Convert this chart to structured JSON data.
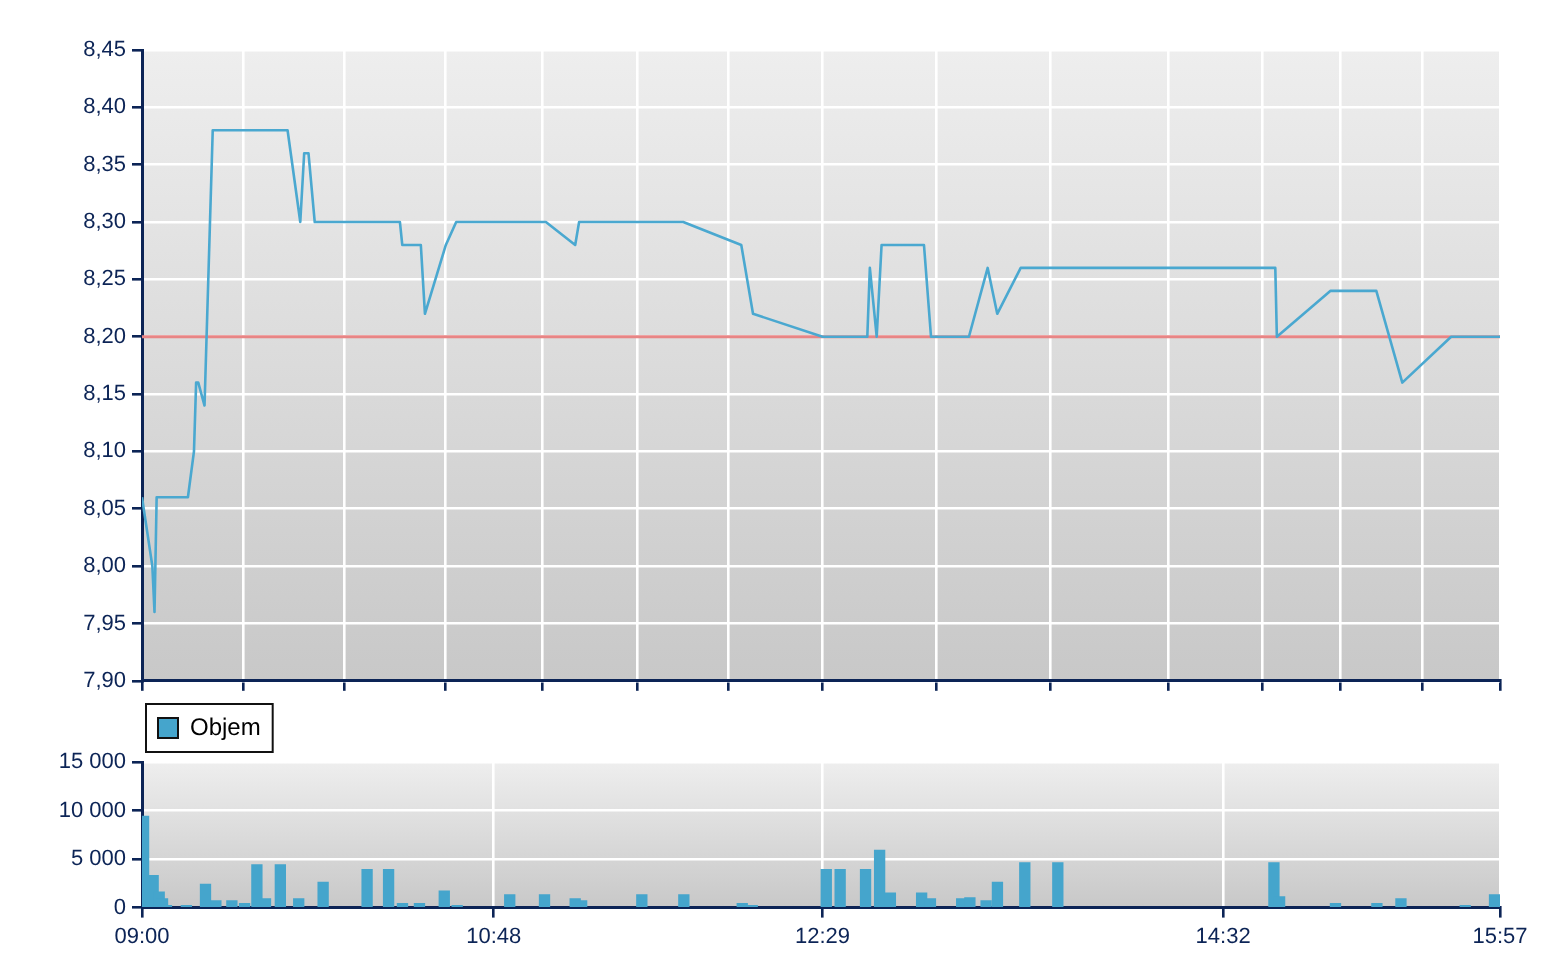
{
  "chart_data": [
    {
      "type": "line",
      "color": "#4aa8d0",
      "marker": "none",
      "line_style": "solid",
      "grid": true,
      "tick_labels": "y",
      "x": [
        9.0,
        9.053,
        9.064,
        9.075,
        9.235,
        9.266,
        9.277,
        9.288,
        9.32,
        9.362,
        9.745,
        9.81,
        9.83,
        9.852,
        9.884,
        10.32,
        10.332,
        10.427,
        10.448,
        10.555,
        10.608,
        11.067,
        11.217,
        11.237,
        11.77,
        12.067,
        12.127,
        12.483,
        12.712,
        12.725,
        12.76,
        12.785,
        13.002,
        13.038,
        13.232,
        13.328,
        13.377,
        13.497,
        14.8,
        14.808,
        15.083,
        15.317,
        15.45,
        15.7,
        15.95
      ],
      "values": [
        8.06,
        8.0,
        7.96,
        8.06,
        8.06,
        8.1,
        8.16,
        8.16,
        8.14,
        8.38,
        8.38,
        8.3,
        8.36,
        8.36,
        8.3,
        8.3,
        8.28,
        8.28,
        8.22,
        8.28,
        8.3,
        8.3,
        8.28,
        8.3,
        8.3,
        8.28,
        8.22,
        8.2,
        8.2,
        8.26,
        8.2,
        8.28,
        8.28,
        8.2,
        8.2,
        8.26,
        8.22,
        8.26,
        8.26,
        8.2,
        8.24,
        8.24,
        8.16,
        8.2,
        8.2
      ],
      "xlim": [
        9,
        15.95
      ],
      "xticks": [
        {
          "value": 9,
          "label": null
        },
        {
          "value": 9.517,
          "label": null
        },
        {
          "value": 10.033,
          "label": null
        },
        {
          "value": 10.55,
          "label": null
        },
        {
          "value": 11.05,
          "label": null
        },
        {
          "value": 11.533,
          "label": null
        },
        {
          "value": 12.0,
          "label": null
        },
        {
          "value": 12.483,
          "label": null
        },
        {
          "value": 13.067,
          "label": null
        },
        {
          "value": 13.65,
          "label": null
        },
        {
          "value": 14.25,
          "label": null
        },
        {
          "value": 14.733,
          "label": null
        },
        {
          "value": 15.133,
          "label": null
        },
        {
          "value": 15.55,
          "label": null
        },
        {
          "value": 15.95,
          "label": null
        }
      ],
      "ylim": [
        7.9,
        8.45
      ],
      "yticks": [
        {
          "value": 7.9,
          "label": "7,90"
        },
        {
          "value": 7.95,
          "label": "7,95"
        },
        {
          "value": 8.0,
          "label": "8,00"
        },
        {
          "value": 8.05,
          "label": "8,05"
        },
        {
          "value": 8.1,
          "label": "8,10"
        },
        {
          "value": 8.15,
          "label": "8,15"
        },
        {
          "value": 8.2,
          "label": "8,20"
        },
        {
          "value": 8.25,
          "label": "8,25"
        },
        {
          "value": 8.3,
          "label": "8,30"
        },
        {
          "value": 8.35,
          "label": "8,35"
        },
        {
          "value": 8.4,
          "label": "8,40"
        },
        {
          "value": 8.45,
          "label": "8,45"
        }
      ],
      "ref_lines": [
        {
          "axis": "y",
          "value": 8.2,
          "color": "#e88585"
        }
      ]
    },
    {
      "type": "bar",
      "grid": true,
      "legend": "top left",
      "x": [
        9.008,
        9.057,
        9.088,
        9.105,
        9.125,
        9.227,
        9.325,
        9.378,
        9.46,
        9.525,
        9.588,
        9.632,
        9.708,
        9.802,
        9.927,
        10.152,
        10.262,
        10.333,
        10.42,
        10.547,
        10.613,
        10.882,
        11.06,
        11.217,
        11.25,
        11.558,
        11.773,
        12.072,
        12.123,
        12.502,
        12.573,
        12.703,
        12.775,
        12.83,
        12.99,
        13.035,
        13.195,
        13.237,
        13.32,
        13.378,
        13.518,
        13.687,
        14.793,
        14.822,
        15.108,
        15.32,
        15.443,
        15.772,
        15.922
      ],
      "series": [
        {
          "name": "Objem",
          "color": "#45a5cc",
          "values": [
            9400,
            3300,
            1600,
            900,
            200,
            200,
            2400,
            700,
            700,
            400,
            4400,
            900,
            4400,
            900,
            2600,
            3900,
            3900,
            400,
            400,
            1700,
            200,
            1300,
            1300,
            900,
            700,
            1300,
            1300,
            400,
            200,
            3900,
            3900,
            3900,
            5900,
            1500,
            1500,
            900,
            900,
            1000,
            700,
            2600,
            4600,
            4600,
            4600,
            1100,
            400,
            400,
            900,
            200,
            1300
          ]
        }
      ],
      "xlim": [
        9,
        15.95
      ],
      "xticks": [
        {
          "value": 9,
          "label": "09:00"
        },
        {
          "value": 10.8,
          "label": "10:48"
        },
        {
          "value": 12.483,
          "label": "12:29"
        },
        {
          "value": 14.533,
          "label": "14:32"
        },
        {
          "value": 15.95,
          "label": "15:57"
        }
      ],
      "ylim": [
        0,
        15000
      ],
      "yticks": [
        {
          "value": 0,
          "label": "0"
        },
        {
          "value": 5000,
          "label": "5 000"
        },
        {
          "value": 10000,
          "label": "10 000"
        },
        {
          "value": 15000,
          "label": "15 000"
        }
      ]
    }
  ]
}
